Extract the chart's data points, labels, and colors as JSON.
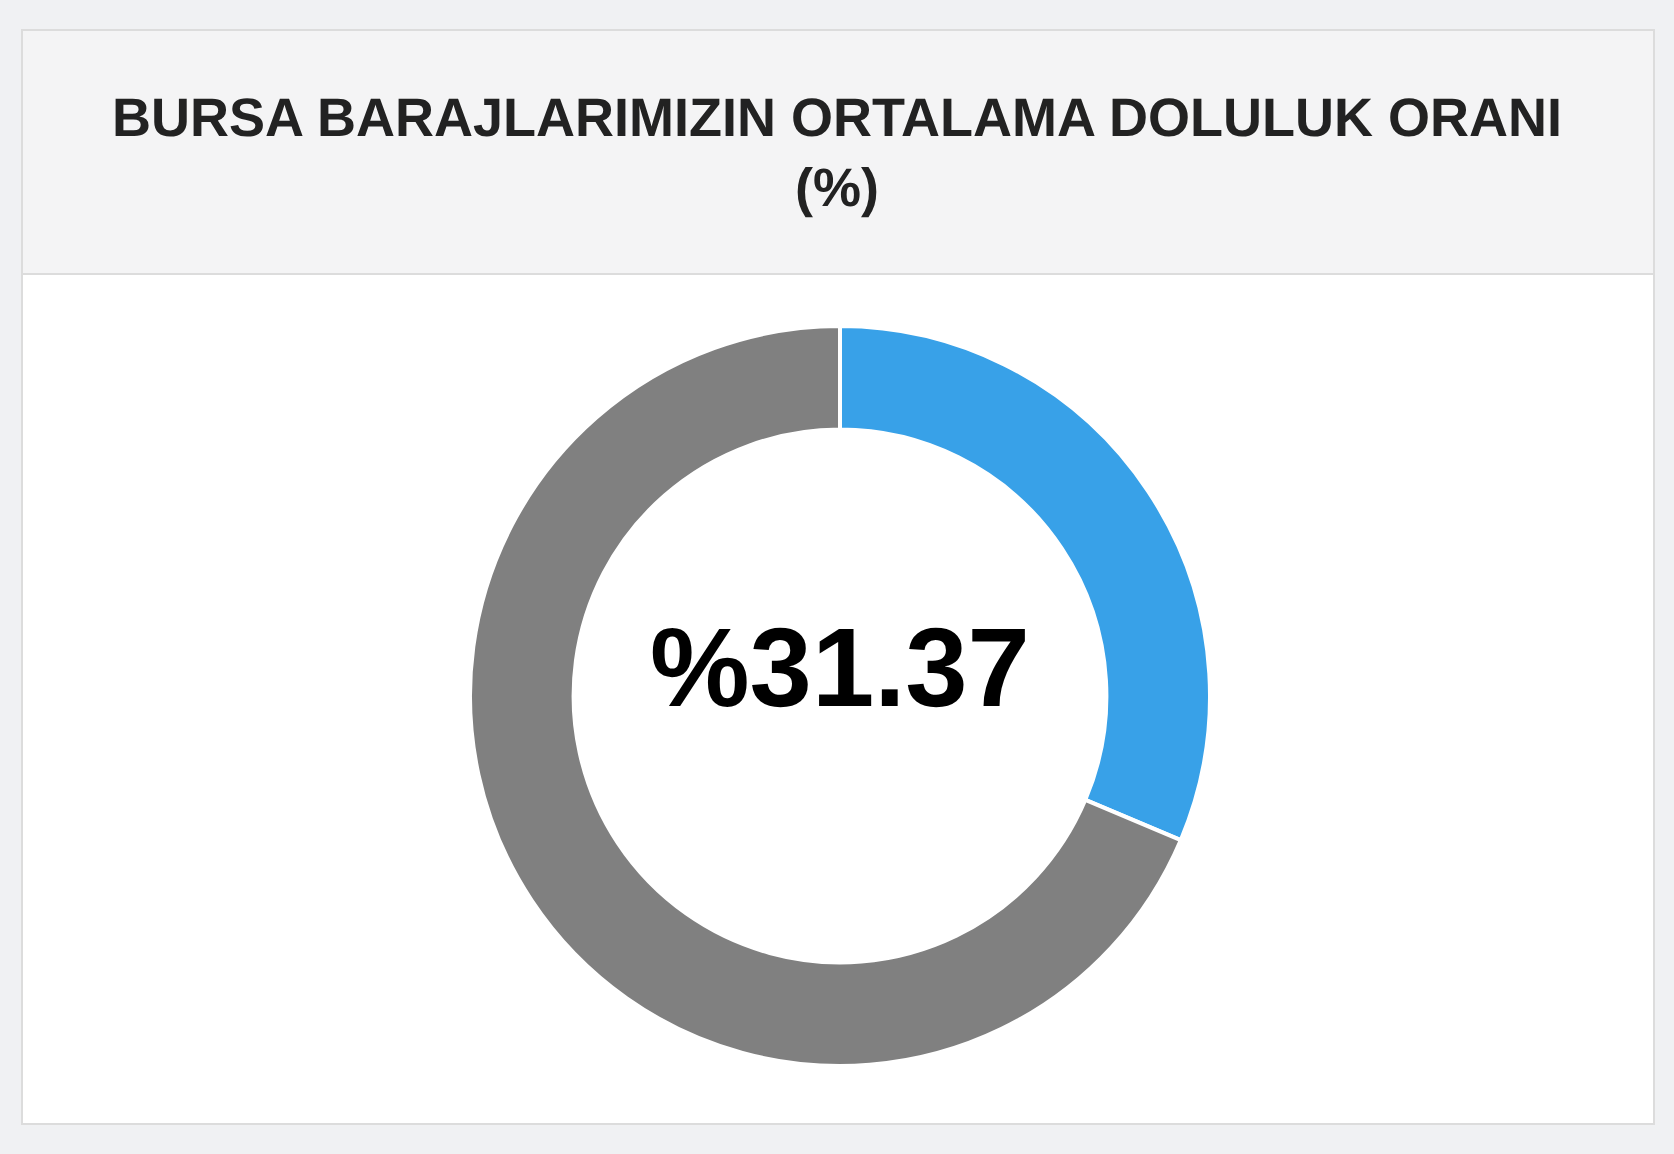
{
  "chart_data": {
    "type": "donut",
    "title": "BURSA BARAJLARIMIZIN ORTALAMA DOLULUK ORANI (%)",
    "categories": [
      null,
      null
    ],
    "values": [
      31.37,
      68.63
    ],
    "colors": [
      "#38a1e8",
      "#808080"
    ],
    "annotations": [
      "%31.37"
    ],
    "legend": false
  }
}
